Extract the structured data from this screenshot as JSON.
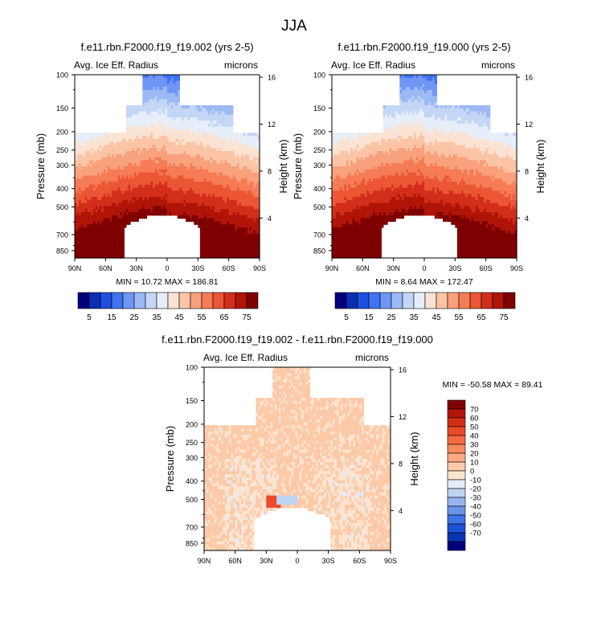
{
  "figure_title": "JJA",
  "chart_data": [
    {
      "type": "heatmap",
      "title": "f.e11.rbn.F2000.f19_f19.002 (yrs 2-5)",
      "left_label": "Avg. Ice Eff. Radius",
      "right_label": "microns",
      "xlabel": "",
      "ylabel": "Pressure (mb)",
      "ylabel_right": "Height (km)",
      "x_ticks": [
        "90N",
        "60N",
        "30N",
        "0",
        "30S",
        "60S",
        "90S"
      ],
      "y_ticks": [
        "100",
        "150",
        "200",
        "250",
        "300",
        "400",
        "500",
        "700",
        "850"
      ],
      "y_right_ticks": [
        "16",
        "12",
        "8",
        "4"
      ],
      "xlim": [
        -90,
        90
      ],
      "ylim_mb": [
        1000,
        100
      ],
      "min_label": "MIN = 10.72",
      "max_label": "MAX = 186.81",
      "scale": "sequential"
    },
    {
      "type": "heatmap",
      "title": "f.e11.rbn.F2000.f19_f19.000 (yrs 2-5)",
      "left_label": "Avg. Ice Eff. Radius",
      "right_label": "microns",
      "xlabel": "",
      "ylabel": "Pressure (mb)",
      "ylabel_right": "Height (km)",
      "x_ticks": [
        "90N",
        "60N",
        "30N",
        "0",
        "30S",
        "60S",
        "90S"
      ],
      "y_ticks": [
        "100",
        "150",
        "200",
        "250",
        "300",
        "400",
        "500",
        "700",
        "850"
      ],
      "y_right_ticks": [
        "16",
        "12",
        "8",
        "4"
      ],
      "xlim": [
        -90,
        90
      ],
      "ylim_mb": [
        1000,
        100
      ],
      "min_label": "MIN =  8.64",
      "max_label": "MAX = 172.47",
      "scale": "sequential"
    },
    {
      "type": "heatmap",
      "title": "f.e11.rbn.F2000.f19_f19.002 - f.e11.rbn.F2000.f19_f19.000",
      "left_label": "Avg. Ice Eff. Radius",
      "right_label": "microns",
      "xlabel": "",
      "ylabel": "Pressure (mb)",
      "ylabel_right": "Height (km)",
      "x_ticks": [
        "90N",
        "60N",
        "30N",
        "0",
        "30S",
        "60S",
        "90S"
      ],
      "y_ticks": [
        "100",
        "150",
        "200",
        "250",
        "300",
        "400",
        "500",
        "700",
        "850"
      ],
      "y_right_ticks": [
        "16",
        "12",
        "8",
        "4"
      ],
      "xlim": [
        -90,
        90
      ],
      "ylim_mb": [
        1000,
        100
      ],
      "min_label": "MIN = -50.58",
      "max_label": "MAX =  89.41",
      "scale": "difference"
    }
  ],
  "colorbar_seq": {
    "labels": [
      "5",
      "15",
      "25",
      "35",
      "45",
      "55",
      "65",
      "75"
    ],
    "colors": [
      "#00007f",
      "#0b2fb3",
      "#1d50e0",
      "#3f73f2",
      "#6f96f5",
      "#9cb9f5",
      "#c4d6f5",
      "#e6eefa",
      "#fbe3d3",
      "#fcc4a6",
      "#f9a07c",
      "#f57c55",
      "#eb5634",
      "#d22e1a",
      "#b01508",
      "#7f0000"
    ]
  },
  "colorbar_diff": {
    "labels": [
      "70",
      "60",
      "50",
      "40",
      "30",
      "20",
      "10",
      "0",
      "-10",
      "-20",
      "-30",
      "-40",
      "-50",
      "-60",
      "-70"
    ],
    "colors": [
      "#7f0000",
      "#b3160a",
      "#d12e18",
      "#ea4b2a",
      "#f56a40",
      "#f98b5e",
      "#fbab83",
      "#fccaa8",
      "#fde4d0",
      "#e3ecf8",
      "#bfd3f3",
      "#96b5ef",
      "#6a94ec",
      "#4073e8",
      "#1c52d8",
      "#0b33b0",
      "#00007f"
    ]
  }
}
